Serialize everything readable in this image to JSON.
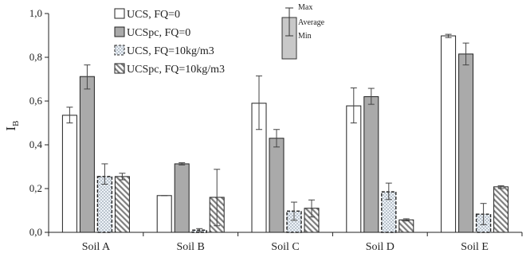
{
  "chart_data": {
    "type": "bar",
    "ylabel": "I",
    "ylabel_sub": "B",
    "ylim": [
      0,
      1.0
    ],
    "yticks": [
      0,
      0.2,
      0.4,
      0.6,
      0.8,
      1.0
    ],
    "ytick_labels": [
      "0,0",
      "0,2",
      "0,4",
      "0,6",
      "0,8",
      "1,0"
    ],
    "categories": [
      "Soil A",
      "Soil B",
      "Soil C",
      "Soil D",
      "Soil E"
    ],
    "series": [
      {
        "name": "UCS, FQ=0",
        "style": "white",
        "values": [
          0.535,
          0.168,
          0.59,
          0.578,
          0.898
        ],
        "min": [
          0.5,
          0.168,
          0.47,
          0.5,
          0.89
        ],
        "max": [
          0.572,
          0.168,
          0.715,
          0.66,
          0.905
        ]
      },
      {
        "name": "UCSpc, FQ=0",
        "style": "gray",
        "values": [
          0.712,
          0.313,
          0.43,
          0.62,
          0.815
        ],
        "min": [
          0.655,
          0.308,
          0.39,
          0.585,
          0.765
        ],
        "max": [
          0.765,
          0.318,
          0.47,
          0.658,
          0.865
        ]
      },
      {
        "name": "UCS, FQ=10kg/m3",
        "style": "dotted",
        "values": [
          0.255,
          0.01,
          0.097,
          0.185,
          0.083
        ],
        "min": [
          0.22,
          0.003,
          0.055,
          0.15,
          0.035
        ],
        "max": [
          0.313,
          0.017,
          0.138,
          0.225,
          0.132
        ]
      },
      {
        "name": "UCSpc, FQ=10kg/m3",
        "style": "hatched",
        "values": [
          0.255,
          0.16,
          0.11,
          0.057,
          0.208
        ],
        "min": [
          0.24,
          0.03,
          0.07,
          0.052,
          0.2
        ],
        "max": [
          0.27,
          0.288,
          0.148,
          0.062,
          0.213
        ]
      }
    ],
    "error_bar_key": {
      "max": "Max",
      "average": "Average",
      "min": "Min"
    },
    "legend_position": "top",
    "grid": false,
    "colors": {
      "gray": "#aaaaaa",
      "axis": "#222222",
      "bar_edge": "#222222",
      "key_box": "#c8c8c8"
    }
  }
}
